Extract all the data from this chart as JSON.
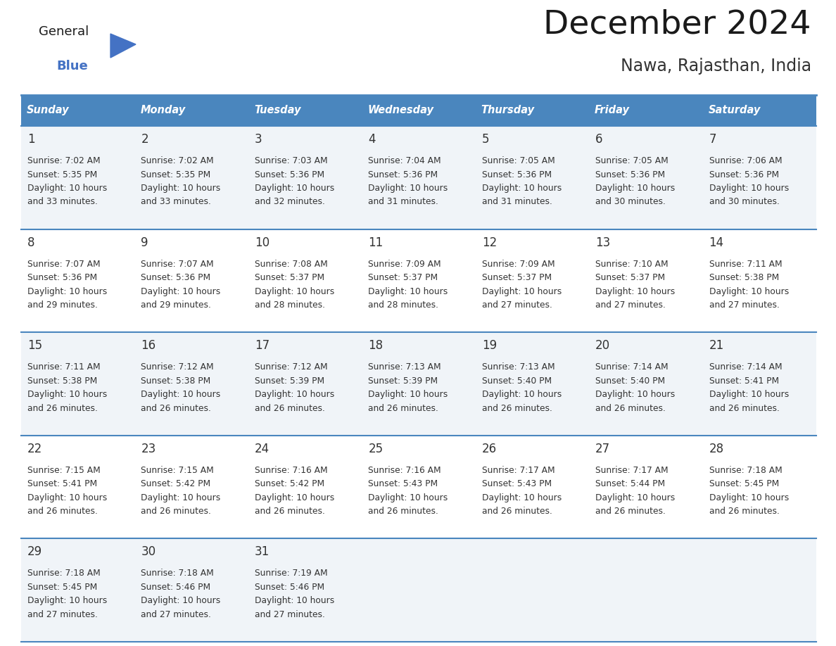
{
  "title": "December 2024",
  "subtitle": "Nawa, Rajasthan, India",
  "header_color": "#4a86be",
  "header_text_color": "#FFFFFF",
  "day_names": [
    "Sunday",
    "Monday",
    "Tuesday",
    "Wednesday",
    "Thursday",
    "Friday",
    "Saturday"
  ],
  "background_color": "#FFFFFF",
  "cell_bg_even": "#f0f4f8",
  "cell_bg_odd": "#FFFFFF",
  "border_color": "#4a86be",
  "text_color": "#333333",
  "days": [
    {
      "day": 1,
      "col": 0,
      "row": 0,
      "sunrise": "7:02 AM",
      "sunset": "5:35 PM",
      "daylight_h": "10 hours",
      "daylight_m": "and 33 minutes."
    },
    {
      "day": 2,
      "col": 1,
      "row": 0,
      "sunrise": "7:02 AM",
      "sunset": "5:35 PM",
      "daylight_h": "10 hours",
      "daylight_m": "and 33 minutes."
    },
    {
      "day": 3,
      "col": 2,
      "row": 0,
      "sunrise": "7:03 AM",
      "sunset": "5:36 PM",
      "daylight_h": "10 hours",
      "daylight_m": "and 32 minutes."
    },
    {
      "day": 4,
      "col": 3,
      "row": 0,
      "sunrise": "7:04 AM",
      "sunset": "5:36 PM",
      "daylight_h": "10 hours",
      "daylight_m": "and 31 minutes."
    },
    {
      "day": 5,
      "col": 4,
      "row": 0,
      "sunrise": "7:05 AM",
      "sunset": "5:36 PM",
      "daylight_h": "10 hours",
      "daylight_m": "and 31 minutes."
    },
    {
      "day": 6,
      "col": 5,
      "row": 0,
      "sunrise": "7:05 AM",
      "sunset": "5:36 PM",
      "daylight_h": "10 hours",
      "daylight_m": "and 30 minutes."
    },
    {
      "day": 7,
      "col": 6,
      "row": 0,
      "sunrise": "7:06 AM",
      "sunset": "5:36 PM",
      "daylight_h": "10 hours",
      "daylight_m": "and 30 minutes."
    },
    {
      "day": 8,
      "col": 0,
      "row": 1,
      "sunrise": "7:07 AM",
      "sunset": "5:36 PM",
      "daylight_h": "10 hours",
      "daylight_m": "and 29 minutes."
    },
    {
      "day": 9,
      "col": 1,
      "row": 1,
      "sunrise": "7:07 AM",
      "sunset": "5:36 PM",
      "daylight_h": "10 hours",
      "daylight_m": "and 29 minutes."
    },
    {
      "day": 10,
      "col": 2,
      "row": 1,
      "sunrise": "7:08 AM",
      "sunset": "5:37 PM",
      "daylight_h": "10 hours",
      "daylight_m": "and 28 minutes."
    },
    {
      "day": 11,
      "col": 3,
      "row": 1,
      "sunrise": "7:09 AM",
      "sunset": "5:37 PM",
      "daylight_h": "10 hours",
      "daylight_m": "and 28 minutes."
    },
    {
      "day": 12,
      "col": 4,
      "row": 1,
      "sunrise": "7:09 AM",
      "sunset": "5:37 PM",
      "daylight_h": "10 hours",
      "daylight_m": "and 27 minutes."
    },
    {
      "day": 13,
      "col": 5,
      "row": 1,
      "sunrise": "7:10 AM",
      "sunset": "5:37 PM",
      "daylight_h": "10 hours",
      "daylight_m": "and 27 minutes."
    },
    {
      "day": 14,
      "col": 6,
      "row": 1,
      "sunrise": "7:11 AM",
      "sunset": "5:38 PM",
      "daylight_h": "10 hours",
      "daylight_m": "and 27 minutes."
    },
    {
      "day": 15,
      "col": 0,
      "row": 2,
      "sunrise": "7:11 AM",
      "sunset": "5:38 PM",
      "daylight_h": "10 hours",
      "daylight_m": "and 26 minutes."
    },
    {
      "day": 16,
      "col": 1,
      "row": 2,
      "sunrise": "7:12 AM",
      "sunset": "5:38 PM",
      "daylight_h": "10 hours",
      "daylight_m": "and 26 minutes."
    },
    {
      "day": 17,
      "col": 2,
      "row": 2,
      "sunrise": "7:12 AM",
      "sunset": "5:39 PM",
      "daylight_h": "10 hours",
      "daylight_m": "and 26 minutes."
    },
    {
      "day": 18,
      "col": 3,
      "row": 2,
      "sunrise": "7:13 AM",
      "sunset": "5:39 PM",
      "daylight_h": "10 hours",
      "daylight_m": "and 26 minutes."
    },
    {
      "day": 19,
      "col": 4,
      "row": 2,
      "sunrise": "7:13 AM",
      "sunset": "5:40 PM",
      "daylight_h": "10 hours",
      "daylight_m": "and 26 minutes."
    },
    {
      "day": 20,
      "col": 5,
      "row": 2,
      "sunrise": "7:14 AM",
      "sunset": "5:40 PM",
      "daylight_h": "10 hours",
      "daylight_m": "and 26 minutes."
    },
    {
      "day": 21,
      "col": 6,
      "row": 2,
      "sunrise": "7:14 AM",
      "sunset": "5:41 PM",
      "daylight_h": "10 hours",
      "daylight_m": "and 26 minutes."
    },
    {
      "day": 22,
      "col": 0,
      "row": 3,
      "sunrise": "7:15 AM",
      "sunset": "5:41 PM",
      "daylight_h": "10 hours",
      "daylight_m": "and 26 minutes."
    },
    {
      "day": 23,
      "col": 1,
      "row": 3,
      "sunrise": "7:15 AM",
      "sunset": "5:42 PM",
      "daylight_h": "10 hours",
      "daylight_m": "and 26 minutes."
    },
    {
      "day": 24,
      "col": 2,
      "row": 3,
      "sunrise": "7:16 AM",
      "sunset": "5:42 PM",
      "daylight_h": "10 hours",
      "daylight_m": "and 26 minutes."
    },
    {
      "day": 25,
      "col": 3,
      "row": 3,
      "sunrise": "7:16 AM",
      "sunset": "5:43 PM",
      "daylight_h": "10 hours",
      "daylight_m": "and 26 minutes."
    },
    {
      "day": 26,
      "col": 4,
      "row": 3,
      "sunrise": "7:17 AM",
      "sunset": "5:43 PM",
      "daylight_h": "10 hours",
      "daylight_m": "and 26 minutes."
    },
    {
      "day": 27,
      "col": 5,
      "row": 3,
      "sunrise": "7:17 AM",
      "sunset": "5:44 PM",
      "daylight_h": "10 hours",
      "daylight_m": "and 26 minutes."
    },
    {
      "day": 28,
      "col": 6,
      "row": 3,
      "sunrise": "7:18 AM",
      "sunset": "5:45 PM",
      "daylight_h": "10 hours",
      "daylight_m": "and 26 minutes."
    },
    {
      "day": 29,
      "col": 0,
      "row": 4,
      "sunrise": "7:18 AM",
      "sunset": "5:45 PM",
      "daylight_h": "10 hours",
      "daylight_m": "and 27 minutes."
    },
    {
      "day": 30,
      "col": 1,
      "row": 4,
      "sunrise": "7:18 AM",
      "sunset": "5:46 PM",
      "daylight_h": "10 hours",
      "daylight_m": "and 27 minutes."
    },
    {
      "day": 31,
      "col": 2,
      "row": 4,
      "sunrise": "7:19 AM",
      "sunset": "5:46 PM",
      "daylight_h": "10 hours",
      "daylight_m": "and 27 minutes."
    }
  ]
}
